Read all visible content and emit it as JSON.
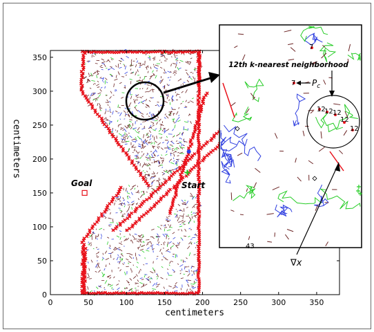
{
  "chart_data": {
    "type": "scatter",
    "title": "",
    "xlabel": "centimeters",
    "ylabel": "centimeters",
    "xlim": [
      0,
      380
    ],
    "ylim": [
      0,
      360
    ],
    "xticks": [
      0,
      50,
      100,
      150,
      200,
      250,
      300,
      350
    ],
    "yticks": [
      0,
      50,
      100,
      150,
      200,
      250,
      300,
      350
    ],
    "grid": false,
    "annotations": {
      "goal": {
        "label": "Goal",
        "x": 45,
        "y": 150
      },
      "start": {
        "label": "Start",
        "x": 180,
        "y": 180
      },
      "circle_center": {
        "x": 122,
        "y": 300
      },
      "blue_dot": {
        "x": 182,
        "y": 211
      }
    },
    "inset": {
      "title": "12th k-nearest neighborhood",
      "pc_main": "P",
      "pc_sub": "c",
      "pc_value": "7",
      "corner_value": "7",
      "neighbor_values": [
        "12",
        "12",
        "12",
        "12",
        "12"
      ],
      "bottom_value": "43",
      "gradient_label": "∇x"
    },
    "colors": {
      "obstacle": "#e8121b",
      "tree_brown": "#6b2323",
      "tree_blue": "#2f3fe0",
      "tree_green": "#25cc25",
      "axis": "#000000"
    }
  }
}
